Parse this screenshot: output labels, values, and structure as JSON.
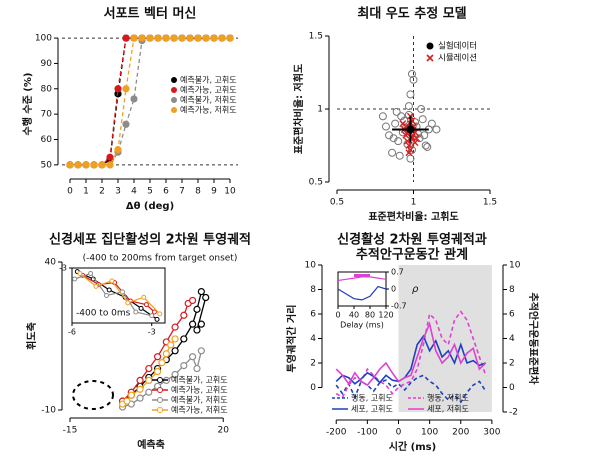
{
  "chart_data": [
    {
      "type": "line",
      "title": "서포트 벡터 머신",
      "xlabel": "Δθ (deg)",
      "ylabel": "수행 수준 (%)",
      "x": [
        0,
        0.5,
        1,
        1.5,
        2,
        2.5,
        3,
        3.5,
        4,
        4.5,
        5,
        5.5,
        6,
        6.5,
        7,
        7.5,
        8,
        8.5,
        9,
        9.5,
        10
      ],
      "xlim": [
        -0.5,
        10.5
      ],
      "xticks": [
        0,
        1,
        2,
        3,
        4,
        5,
        6,
        7,
        8,
        9,
        10
      ],
      "ylim": [
        46,
        102
      ],
      "yticks": [
        50,
        60,
        70,
        80,
        90,
        100
      ],
      "hlines": [
        50,
        100
      ],
      "legend": "right",
      "series": [
        {
          "name": "예측불가, 고휘도",
          "color": "#000000",
          "line_style": "dashed",
          "values": [
            50,
            50,
            50,
            50,
            50,
            52,
            78,
            100,
            100,
            100,
            100,
            100,
            100,
            100,
            100,
            100,
            100,
            100,
            100,
            100,
            100
          ]
        },
        {
          "name": "예측가능, 고휘도",
          "color": "#d7191c",
          "line_style": "dashed",
          "values": [
            50,
            50,
            50,
            50,
            50,
            53,
            80,
            100,
            100,
            100,
            100,
            100,
            100,
            100,
            100,
            100,
            100,
            100,
            100,
            100,
            100
          ]
        },
        {
          "name": "예측불가, 저휘도",
          "color": "#8c8c8c",
          "line_style": "dashed",
          "values": [
            50,
            50,
            50,
            50,
            50,
            50,
            55,
            66,
            76,
            99,
            100,
            100,
            100,
            100,
            100,
            100,
            100,
            100,
            100,
            100,
            100
          ]
        },
        {
          "name": "예측가능, 저휘도",
          "color": "#f0a020",
          "line_style": "dashed",
          "values": [
            50,
            50,
            50,
            50,
            50,
            50,
            56,
            80,
            100,
            100,
            100,
            100,
            100,
            100,
            100,
            100,
            100,
            100,
            100,
            100,
            100
          ]
        }
      ]
    },
    {
      "type": "scatter",
      "title": "최대 우도 추정 모델",
      "xlabel": "표준편차비율: 고휘도",
      "ylabel": "표준편차비율: 저휘도",
      "xlim": [
        0.5,
        1.5
      ],
      "xticks": [
        0.5,
        1,
        1.5
      ],
      "ylim": [
        0.5,
        1.5
      ],
      "yticks": [
        0.5,
        1,
        1.5
      ],
      "hlines": [
        1
      ],
      "vlines": [
        1
      ],
      "legend": "upper right",
      "mean": {
        "x": 0.98,
        "y": 0.86,
        "xerr": 0.12,
        "yerr": 0.09
      },
      "series": [
        {
          "name": "실험데이터",
          "color": "#777777",
          "marker": "o",
          "x": [
            0.84,
            0.88,
            0.9,
            0.92,
            0.95,
            0.97,
            0.99,
            1.0,
            1.02,
            1.04,
            1.06,
            1.08,
            1.1,
            0.86,
            0.89,
            0.93,
            0.96,
            0.98,
            1.01,
            1.03,
            1.05,
            0.82,
            0.87,
            0.94,
            1.07,
            1.12,
            0.91,
            0.97,
            1.0,
            0.99,
            0.95,
            1.09,
            0.8,
            1.15,
            0.98
          ],
          "values": [
            0.82,
            0.9,
            0.78,
            0.95,
            0.85,
            1.02,
            0.72,
            1.2,
            0.88,
            0.8,
            0.93,
            0.75,
            0.86,
            0.7,
            0.98,
            0.84,
            0.76,
            1.1,
            0.91,
            0.83,
            1.0,
            0.88,
            0.8,
            0.92,
            0.82,
            0.9,
            0.68,
            0.96,
            0.79,
            1.24,
            0.87,
            0.74,
            0.95,
            0.86,
            0.66
          ]
        },
        {
          "name": "시뮬레이션",
          "color": "#d62020",
          "marker": "x",
          "x": [
            0.95,
            0.97,
            0.99,
            1.0,
            0.96,
            0.98,
            1.01,
            0.94,
            0.97,
            0.99,
            1.02,
            0.96,
            0.98,
            1.0,
            0.93,
            0.97,
            0.99,
            1.01,
            0.95,
            0.98
          ],
          "values": [
            0.82,
            0.85,
            0.8,
            0.88,
            0.78,
            0.9,
            0.84,
            0.86,
            0.75,
            0.92,
            0.8,
            0.83,
            0.72,
            0.86,
            0.9,
            0.7,
            0.81,
            0.77,
            0.88,
            0.95
          ]
        }
      ]
    },
    {
      "type": "line",
      "title": "신경세포 집단활성의 2차원 투영궤적",
      "subtitle": "(-400 to 200ms from target onset)",
      "xlabel": "예측축",
      "ylabel": "휘도축",
      "xlim": [
        -15,
        22
      ],
      "xticks": [
        -15,
        20
      ],
      "ylim": [
        -10,
        40
      ],
      "yticks": [
        -10,
        40
      ],
      "legend": "lower right",
      "series": [
        {
          "name": "예측불가, 고휘도",
          "color": "#000000",
          "x": [
            -3,
            -1,
            1,
            3,
            5,
            7,
            9,
            11,
            13,
            14,
            15,
            16,
            14,
            15
          ],
          "values": [
            -7,
            -5,
            -2,
            1,
            4,
            7,
            10,
            14,
            19,
            24,
            30,
            28,
            17,
            19
          ]
        },
        {
          "name": "예측가능, 고휘도",
          "color": "#d7191c",
          "x": [
            -3,
            -1,
            1,
            3,
            5,
            7,
            9,
            11,
            12,
            13
          ],
          "values": [
            -7,
            -4,
            0,
            4,
            8,
            13,
            18,
            22,
            26,
            27
          ]
        },
        {
          "name": "예측불가, 저휘도",
          "color": "#8c8c8c",
          "x": [
            -3,
            -1,
            1,
            3,
            5,
            7,
            9,
            11,
            13,
            14,
            15
          ],
          "values": [
            -9,
            -8,
            -6,
            -4,
            -2,
            0,
            2,
            5,
            8,
            4,
            10
          ]
        },
        {
          "name": "예측가능, 저휘도",
          "color": "#f0a020",
          "x": [
            -3,
            -2,
            -1,
            1,
            3,
            5,
            6,
            7,
            8,
            9
          ],
          "values": [
            -8,
            -7,
            -5,
            -3,
            0,
            3,
            6,
            9,
            12,
            14
          ]
        }
      ],
      "inset": {
        "label": "-400 to 0ms",
        "xlim": [
          -6,
          -2.5
        ],
        "xticks": [
          -6,
          -3
        ],
        "ylim": [
          -6,
          -3
        ],
        "yticks": [
          -3
        ],
        "series": [
          {
            "color": "#000000",
            "x": [
              -5.8,
              -5.2,
              -4.6,
              -4.0,
              -3.4,
              -2.8
            ],
            "values": [
              -3.2,
              -3.6,
              -4.2,
              -4.6,
              -5.2,
              -5.8
            ]
          },
          {
            "color": "#d7191c",
            "x": [
              -5.6,
              -5.0,
              -4.4,
              -3.8,
              -3.2,
              -2.9
            ],
            "values": [
              -3.4,
              -3.9,
              -3.8,
              -4.8,
              -5.0,
              -5.4
            ]
          },
          {
            "color": "#8c8c8c",
            "x": [
              -5.9,
              -5.3,
              -4.7,
              -4.1,
              -3.6,
              -3.0
            ],
            "values": [
              -3.6,
              -3.3,
              -4.5,
              -4.3,
              -5.4,
              -5.6
            ]
          },
          {
            "color": "#f0a020",
            "x": [
              -5.7,
              -5.1,
              -4.5,
              -3.9,
              -3.3,
              -2.7
            ],
            "values": [
              -3.3,
              -4.0,
              -3.7,
              -4.9,
              -4.6,
              -5.5
            ]
          }
        ]
      }
    },
    {
      "type": "line",
      "title": [
        "신경활성 2차원 투영궤적과",
        "추적안구운동간 관계"
      ],
      "xlabel": "시간 (ms)",
      "ylabel": "투영궤적간 거리",
      "y2label": "추적안구운동표준편차",
      "x": [
        -200,
        -180,
        -160,
        -140,
        -120,
        -100,
        -80,
        -60,
        -40,
        -20,
        0,
        20,
        40,
        60,
        80,
        100,
        120,
        140,
        160,
        180,
        200,
        220,
        240,
        260,
        280
      ],
      "xlim": [
        -220,
        310
      ],
      "xticks": [
        -200,
        -100,
        0,
        100,
        200,
        300
      ],
      "ylim": [
        -2,
        10
      ],
      "yticks": [
        0,
        2,
        4,
        6,
        8,
        10
      ],
      "y2lim": [
        -2,
        10
      ],
      "y2ticks": [
        -2,
        0,
        2,
        4,
        6,
        8,
        10
      ],
      "shaded_region": [
        0,
        300
      ],
      "legend": "lower",
      "series": [
        {
          "name": "행동, 고휘도",
          "color": "#1f3fbf",
          "line_style": "dashed",
          "axis": "y2",
          "values": [
            0.2,
            -0.5,
            0.3,
            -0.8,
            0.5,
            0.2,
            -0.3,
            0.4,
            0.6,
            0,
            0.3,
            -0.2,
            0.4,
            0.8,
            1.0,
            0.5,
            0.2,
            -0.5,
            -1.0,
            -0.6,
            -1.2,
            -0.4,
            0.2,
            0.5,
            -0.3
          ]
        },
        {
          "name": "행동, 저휘도",
          "color": "#e040d0",
          "line_style": "dashed",
          "axis": "y2",
          "values": [
            -0.5,
            -0.8,
            0.2,
            0.8,
            0.5,
            1.5,
            1.0,
            0.5,
            0.2,
            -0.5,
            0.0,
            0.3,
            0.5,
            1.5,
            3.5,
            6.0,
            5.5,
            4.0,
            3.5,
            5.5,
            6.2,
            5.5,
            4.0,
            2.5,
            1.0
          ]
        },
        {
          "name": "세포, 고휘도",
          "color": "#1f3fbf",
          "line_style": "solid",
          "values": [
            0.5,
            1.0,
            0.8,
            0.3,
            0.7,
            1.2,
            0.9,
            0.4,
            1.0,
            0.6,
            0.5,
            0.8,
            1.5,
            3.5,
            4.2,
            3.0,
            3.8,
            2.5,
            3.0,
            2.0,
            3.5,
            2.0,
            2.2,
            1.8,
            2.0
          ]
        },
        {
          "name": "세포, 저휘도",
          "color": "#e040d0",
          "line_style": "solid",
          "values": [
            1.5,
            1.0,
            0.3,
            1.2,
            0.5,
            0.2,
            0.8,
            1.5,
            2.0,
            1.2,
            0.5,
            0.8,
            1.0,
            2.5,
            4.0,
            5.2,
            3.0,
            2.0,
            2.5,
            3.5,
            2.0,
            2.8,
            3.2,
            1.5,
            2.0
          ]
        }
      ],
      "inset": {
        "xlabel": "Delay (ms)",
        "ylabel": "ρ",
        "x": [
          0,
          20,
          40,
          60,
          80,
          100,
          120
        ],
        "xlim": [
          0,
          120
        ],
        "xticks": [
          0,
          40,
          80,
          120
        ],
        "ylim": [
          -0.7,
          0.7
        ],
        "yticks": [
          -0.7,
          0,
          0.7
        ],
        "series": [
          {
            "color": "#e040d0",
            "values": [
              0.35,
              0.4,
              0.45,
              0.5,
              0.5,
              0.45,
              0.4
            ]
          },
          {
            "color": "#1f3fbf",
            "values": [
              0.0,
              -0.2,
              -0.4,
              -0.45,
              -0.3,
              0.1,
              0.0
            ]
          }
        ]
      }
    }
  ]
}
